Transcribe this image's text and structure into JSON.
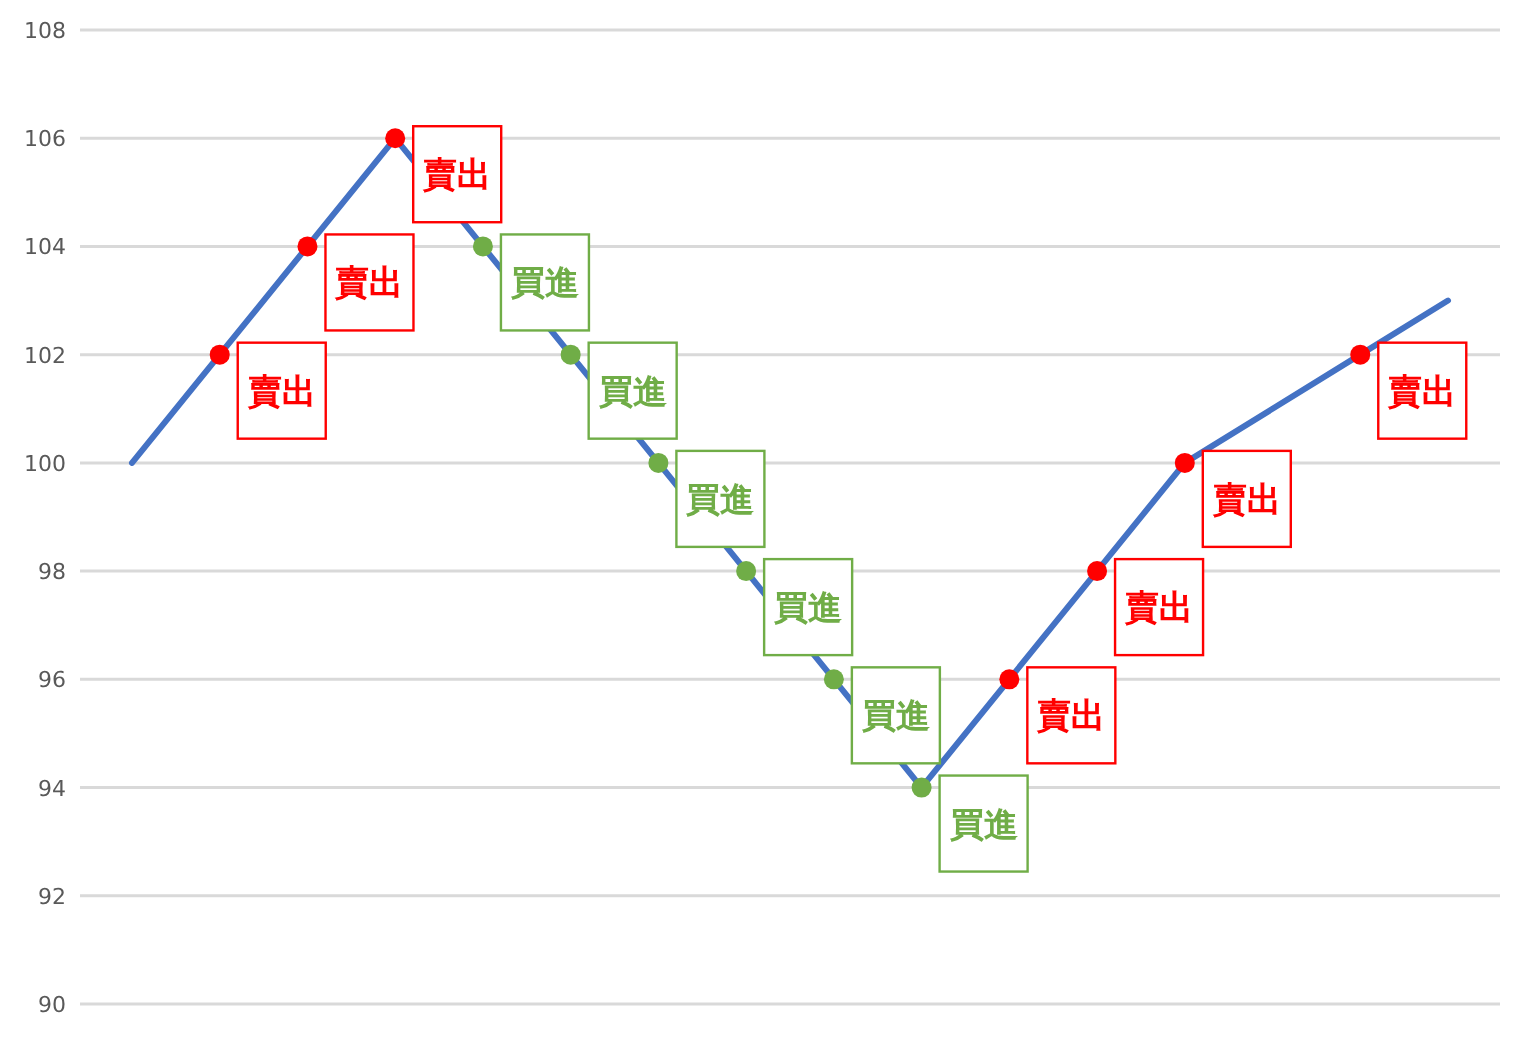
{
  "chart_data": {
    "type": "line",
    "categories": [
      null,
      null,
      null,
      null,
      null,
      null,
      null,
      null,
      null,
      null,
      null,
      null,
      null,
      null,
      null,
      null
    ],
    "series": [
      {
        "color": "#4472c4",
        "values": [
          100,
          102,
          104,
          106,
          104,
          102,
          100,
          98,
          96,
          94,
          96,
          98,
          100,
          101,
          102,
          103
        ]
      },
      {
        "type": "scatter",
        "color": "#ff0000",
        "values": [
          null,
          102,
          104,
          106,
          null,
          null,
          null,
          null,
          null,
          null,
          96,
          98,
          100,
          null,
          102,
          null
        ],
        "value_labels": [
          null,
          "賣出",
          "賣出",
          "賣出",
          null,
          null,
          null,
          null,
          null,
          null,
          "賣出",
          "賣出",
          "賣出",
          null,
          "賣出",
          null
        ]
      },
      {
        "type": "scatter",
        "color": "#70ad47",
        "values": [
          null,
          null,
          null,
          null,
          104,
          102,
          100,
          98,
          96,
          94,
          null,
          null,
          null,
          null,
          null,
          null
        ],
        "value_labels": [
          null,
          null,
          null,
          null,
          "買進",
          "買進",
          "買進",
          "買進",
          "買進",
          "買進",
          null,
          null,
          null,
          null,
          null,
          null
        ]
      }
    ],
    "ylim": [
      90,
      108
    ],
    "yticks": [
      90,
      92,
      94,
      96,
      98,
      100,
      102,
      104,
      106,
      108
    ],
    "grid": "y",
    "tick_labels": "y"
  }
}
